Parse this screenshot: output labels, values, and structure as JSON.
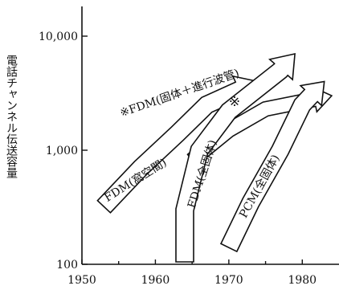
{
  "chart_data": {
    "type": "line",
    "ylabel": "電話チャンネル伝送容量",
    "xlim": [
      1950,
      1985
    ],
    "ylim": [
      100,
      10000
    ],
    "yscale": "log",
    "x_ticks": [
      1950,
      1960,
      1970,
      1980
    ],
    "x_tick_labels": [
      "1950",
      "1960",
      "1970",
      "1980"
    ],
    "y_ticks": [
      100,
      1000,
      10000
    ],
    "y_tick_labels": [
      "100",
      "1,000",
      "10,000"
    ],
    "grid": false,
    "series": [
      {
        "name": "FDM(空間)",
        "label": "FDM(窩空間)",
        "points": [
          [
            1953,
            320
          ],
          [
            1958,
            700
          ],
          [
            1963,
            1400
          ],
          [
            1967,
            2500
          ],
          [
            1974,
            4000
          ]
        ]
      },
      {
        "name": "FDM(固体＋進行波管)",
        "label": "※FDM(固体＋進行波管)",
        "points": [
          [
            1965,
            820
          ],
          [
            1970,
            1500
          ],
          [
            1975,
            2300
          ],
          [
            1984,
            3000
          ]
        ]
      },
      {
        "name": "FDM(全固体)",
        "label": "FDM(全固体)",
        "points": [
          [
            1964,
            105
          ],
          [
            1964,
            300
          ],
          [
            1966,
            1000
          ],
          [
            1970,
            2200
          ],
          [
            1977,
            5000
          ],
          [
            1979,
            7000
          ]
        ]
      },
      {
        "name": "PCM(全固体)",
        "label": "PCM(全固体)",
        "points": [
          [
            1970,
            140
          ],
          [
            1973,
            350
          ],
          [
            1977,
            1000
          ],
          [
            1980,
            2500
          ],
          [
            1983,
            4000
          ]
        ]
      }
    ],
    "annotations": [
      "※"
    ]
  }
}
